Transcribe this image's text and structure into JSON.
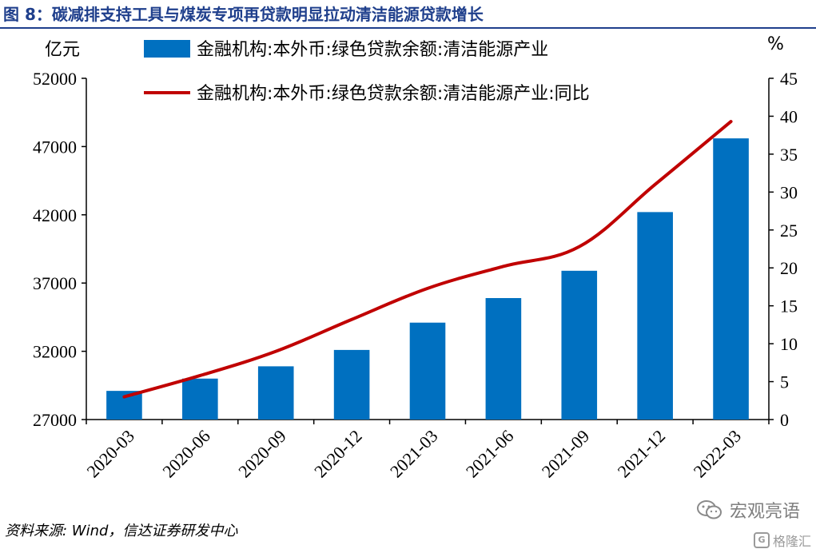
{
  "header": {
    "title": "图 8：碳减排支持工具与煤炭专项再贷款明显拉动清洁能源贷款增长"
  },
  "footer": {
    "source": "资料来源: Wind，信达证券研发中心",
    "watermark": "宏观亮语",
    "watermark_sub": "格隆汇",
    "watermark_sub_icon": "G"
  },
  "chart_data": {
    "type": "bar",
    "categories": [
      "2020-03",
      "2020-06",
      "2020-09",
      "2020-12",
      "2021-03",
      "2021-06",
      "2021-09",
      "2021-12",
      "2022-03"
    ],
    "series": [
      {
        "name": "金融机构:本外币:绿色贷款余额:清洁能源产业",
        "type": "bar",
        "axis": "left",
        "color": "#0070c0",
        "values": [
          29100,
          30000,
          30900,
          32100,
          34100,
          35900,
          37900,
          42200,
          47600
        ]
      },
      {
        "name": "金融机构:本外币:绿色贷款余额:清洁能源产业:同比",
        "type": "line",
        "axis": "right",
        "color": "#c00000",
        "values": [
          3.0,
          5.8,
          9.0,
          13.2,
          17.3,
          20.2,
          22.8,
          31.0,
          39.3
        ]
      }
    ],
    "y_left": {
      "label": "亿元",
      "min": 27000,
      "max": 52000,
      "ticks": [
        27000,
        32000,
        37000,
        42000,
        47000,
        52000
      ]
    },
    "y_right": {
      "label": "%",
      "min": 0,
      "max": 45,
      "ticks": [
        0,
        5,
        10,
        15,
        20,
        25,
        30,
        35,
        40,
        45
      ]
    },
    "grid": false,
    "legend_position": "top"
  }
}
